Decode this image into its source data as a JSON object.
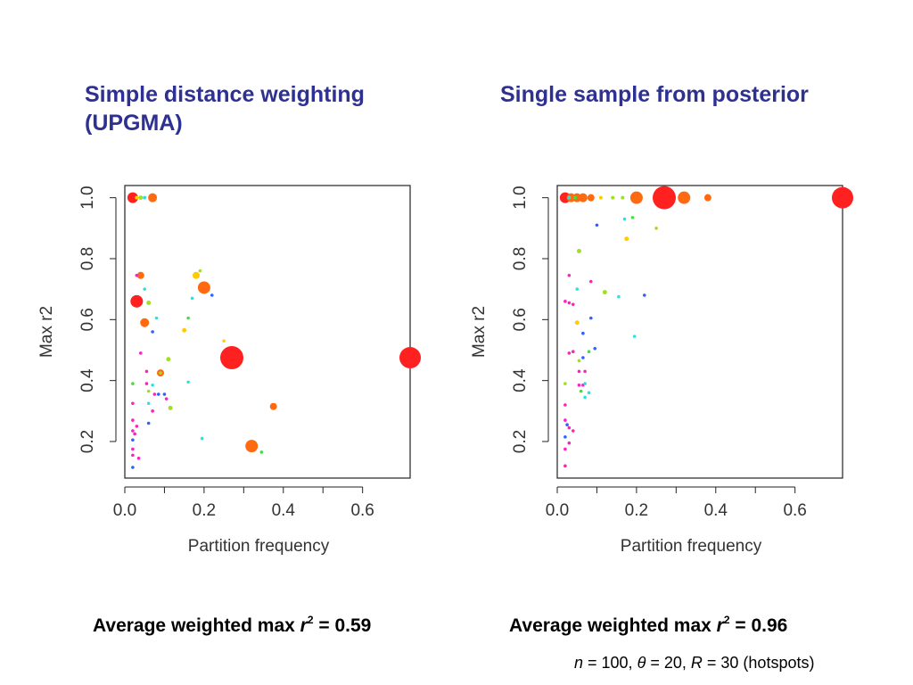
{
  "titles": {
    "left_line1": "Simple distance weighting",
    "left_line2": "(UPGMA)",
    "right": "Single sample from posterior"
  },
  "summaries": {
    "left": {
      "prefix": "Average weighted max ",
      "var": "r",
      "sup": "2",
      "suffix": " = 0.59"
    },
    "right": {
      "prefix": "Average weighted max ",
      "var": "r",
      "sup": "2",
      "suffix": " = 0.96"
    }
  },
  "footnote": {
    "n_var": "n",
    "n_text": " = 100, ",
    "theta_var": "θ",
    "theta_text": " = 20, ",
    "R_var": "R",
    "R_text": " = 30 (hotspots)"
  },
  "colors": {
    "title": "#2e3192",
    "red": "#ff2020",
    "orange": "#ff6a10",
    "dark_orange": "#f08a1a",
    "yellow": "#ffcc00",
    "lime": "#a0e020",
    "green": "#40e040",
    "cyan": "#30e0e0",
    "blue": "#3060ff",
    "magenta": "#ff20c0"
  },
  "chart_data": [
    {
      "type": "scatter",
      "title": "Simple distance weighting (UPGMA)",
      "xlabel": "Partition frequency",
      "ylabel": "Max r2",
      "xlim": [
        0.0,
        0.72
      ],
      "ylim": [
        0.08,
        1.04
      ],
      "xticks": [
        "0.0",
        "0.2",
        "0.4",
        "0.6"
      ],
      "xtick_values": [
        0.0,
        0.2,
        0.4,
        0.6
      ],
      "yticks": [
        "0.2",
        "0.4",
        "0.6",
        "0.8",
        "1.0"
      ],
      "ytick_values": [
        0.2,
        0.4,
        0.6,
        0.8,
        1.0
      ],
      "points": [
        {
          "x": 0.72,
          "y": 0.475,
          "size": 12,
          "color": "red"
        },
        {
          "x": 0.27,
          "y": 0.475,
          "size": 13,
          "color": "red"
        },
        {
          "x": 0.32,
          "y": 0.185,
          "size": 7,
          "color": "orange"
        },
        {
          "x": 0.2,
          "y": 0.705,
          "size": 7,
          "color": "orange"
        },
        {
          "x": 0.03,
          "y": 0.66,
          "size": 7,
          "color": "red"
        },
        {
          "x": 0.02,
          "y": 1.0,
          "size": 6,
          "color": "red"
        },
        {
          "x": 0.07,
          "y": 1.0,
          "size": 5,
          "color": "orange"
        },
        {
          "x": 0.05,
          "y": 0.59,
          "size": 5,
          "color": "orange"
        },
        {
          "x": 0.04,
          "y": 0.745,
          "size": 4,
          "color": "orange"
        },
        {
          "x": 0.375,
          "y": 0.315,
          "size": 4,
          "color": "orange"
        },
        {
          "x": 0.18,
          "y": 0.745,
          "size": 4,
          "color": "yellow"
        },
        {
          "x": 0.09,
          "y": 0.425,
          "size": 4,
          "color": "orange"
        },
        {
          "x": 0.04,
          "y": 1.0,
          "size": 2.5,
          "color": "lime"
        },
        {
          "x": 0.05,
          "y": 1.0,
          "size": 2,
          "color": "cyan"
        },
        {
          "x": 0.03,
          "y": 1.0,
          "size": 2,
          "color": "yellow"
        },
        {
          "x": 0.06,
          "y": 0.655,
          "size": 2.5,
          "color": "lime"
        },
        {
          "x": 0.05,
          "y": 0.7,
          "size": 1.8,
          "color": "cyan"
        },
        {
          "x": 0.03,
          "y": 0.745,
          "size": 1.8,
          "color": "magenta"
        },
        {
          "x": 0.19,
          "y": 0.76,
          "size": 1.8,
          "color": "lime"
        },
        {
          "x": 0.17,
          "y": 0.67,
          "size": 1.8,
          "color": "cyan"
        },
        {
          "x": 0.22,
          "y": 0.68,
          "size": 1.8,
          "color": "blue"
        },
        {
          "x": 0.16,
          "y": 0.605,
          "size": 1.8,
          "color": "green"
        },
        {
          "x": 0.08,
          "y": 0.605,
          "size": 1.8,
          "color": "cyan"
        },
        {
          "x": 0.15,
          "y": 0.565,
          "size": 2.5,
          "color": "yellow"
        },
        {
          "x": 0.07,
          "y": 0.56,
          "size": 1.8,
          "color": "blue"
        },
        {
          "x": 0.25,
          "y": 0.53,
          "size": 1.8,
          "color": "yellow"
        },
        {
          "x": 0.04,
          "y": 0.49,
          "size": 1.8,
          "color": "magenta"
        },
        {
          "x": 0.11,
          "y": 0.47,
          "size": 2.5,
          "color": "lime"
        },
        {
          "x": 0.055,
          "y": 0.43,
          "size": 1.8,
          "color": "magenta"
        },
        {
          "x": 0.09,
          "y": 0.425,
          "size": 1.8,
          "color": "lime"
        },
        {
          "x": 0.02,
          "y": 0.39,
          "size": 1.8,
          "color": "green"
        },
        {
          "x": 0.16,
          "y": 0.395,
          "size": 1.8,
          "color": "cyan"
        },
        {
          "x": 0.055,
          "y": 0.39,
          "size": 1.8,
          "color": "magenta"
        },
        {
          "x": 0.07,
          "y": 0.385,
          "size": 1.8,
          "color": "cyan"
        },
        {
          "x": 0.06,
          "y": 0.365,
          "size": 1.8,
          "color": "lime"
        },
        {
          "x": 0.075,
          "y": 0.355,
          "size": 1.8,
          "color": "magenta"
        },
        {
          "x": 0.085,
          "y": 0.355,
          "size": 1.8,
          "color": "blue"
        },
        {
          "x": 0.1,
          "y": 0.355,
          "size": 1.8,
          "color": "blue"
        },
        {
          "x": 0.105,
          "y": 0.34,
          "size": 1.8,
          "color": "magenta"
        },
        {
          "x": 0.06,
          "y": 0.325,
          "size": 1.8,
          "color": "cyan"
        },
        {
          "x": 0.02,
          "y": 0.325,
          "size": 1.8,
          "color": "magenta"
        },
        {
          "x": 0.115,
          "y": 0.31,
          "size": 2.5,
          "color": "lime"
        },
        {
          "x": 0.07,
          "y": 0.3,
          "size": 1.8,
          "color": "magenta"
        },
        {
          "x": 0.02,
          "y": 0.27,
          "size": 1.8,
          "color": "magenta"
        },
        {
          "x": 0.06,
          "y": 0.26,
          "size": 1.8,
          "color": "blue"
        },
        {
          "x": 0.03,
          "y": 0.25,
          "size": 1.8,
          "color": "magenta"
        },
        {
          "x": 0.02,
          "y": 0.235,
          "size": 1.8,
          "color": "magenta"
        },
        {
          "x": 0.025,
          "y": 0.225,
          "size": 1.8,
          "color": "magenta"
        },
        {
          "x": 0.02,
          "y": 0.205,
          "size": 1.8,
          "color": "blue"
        },
        {
          "x": 0.195,
          "y": 0.21,
          "size": 1.8,
          "color": "cyan"
        },
        {
          "x": 0.02,
          "y": 0.175,
          "size": 1.8,
          "color": "magenta"
        },
        {
          "x": 0.345,
          "y": 0.165,
          "size": 1.8,
          "color": "green"
        },
        {
          "x": 0.02,
          "y": 0.155,
          "size": 1.8,
          "color": "magenta"
        },
        {
          "x": 0.035,
          "y": 0.145,
          "size": 1.8,
          "color": "magenta"
        },
        {
          "x": 0.02,
          "y": 0.115,
          "size": 1.8,
          "color": "blue"
        }
      ]
    },
    {
      "type": "scatter",
      "title": "Single sample from posterior",
      "xlabel": "Partition frequency",
      "ylabel": "Max r2",
      "xlim": [
        0.0,
        0.72
      ],
      "ylim": [
        0.08,
        1.04
      ],
      "xticks": [
        "0.0",
        "0.2",
        "0.4",
        "0.6"
      ],
      "xtick_values": [
        0.0,
        0.2,
        0.4,
        0.6
      ],
      "yticks": [
        "0.2",
        "0.4",
        "0.6",
        "0.8",
        "1.0"
      ],
      "ytick_values": [
        0.2,
        0.4,
        0.6,
        0.8,
        1.0
      ],
      "points": [
        {
          "x": 0.72,
          "y": 1.0,
          "size": 12,
          "color": "red"
        },
        {
          "x": 0.27,
          "y": 1.0,
          "size": 13,
          "color": "red"
        },
        {
          "x": 0.32,
          "y": 1.0,
          "size": 7,
          "color": "orange"
        },
        {
          "x": 0.2,
          "y": 1.0,
          "size": 7,
          "color": "orange"
        },
        {
          "x": 0.02,
          "y": 1.0,
          "size": 6,
          "color": "red"
        },
        {
          "x": 0.035,
          "y": 1.0,
          "size": 5,
          "color": "orange"
        },
        {
          "x": 0.05,
          "y": 1.0,
          "size": 5,
          "color": "orange"
        },
        {
          "x": 0.065,
          "y": 1.0,
          "size": 5,
          "color": "orange"
        },
        {
          "x": 0.085,
          "y": 1.0,
          "size": 4,
          "color": "orange"
        },
        {
          "x": 0.38,
          "y": 1.0,
          "size": 4,
          "color": "orange"
        },
        {
          "x": 0.11,
          "y": 1.0,
          "size": 2,
          "color": "yellow"
        },
        {
          "x": 0.14,
          "y": 1.0,
          "size": 2,
          "color": "lime"
        },
        {
          "x": 0.165,
          "y": 1.0,
          "size": 2,
          "color": "lime"
        },
        {
          "x": 0.03,
          "y": 1.0,
          "size": 2,
          "color": "cyan"
        },
        {
          "x": 0.045,
          "y": 1.0,
          "size": 2,
          "color": "green"
        },
        {
          "x": 0.1,
          "y": 0.91,
          "size": 1.8,
          "color": "blue"
        },
        {
          "x": 0.17,
          "y": 0.93,
          "size": 1.8,
          "color": "cyan"
        },
        {
          "x": 0.19,
          "y": 0.935,
          "size": 1.8,
          "color": "green"
        },
        {
          "x": 0.25,
          "y": 0.9,
          "size": 1.8,
          "color": "lime"
        },
        {
          "x": 0.175,
          "y": 0.865,
          "size": 2.5,
          "color": "yellow"
        },
        {
          "x": 0.055,
          "y": 0.825,
          "size": 2.5,
          "color": "lime"
        },
        {
          "x": 0.03,
          "y": 0.745,
          "size": 1.8,
          "color": "magenta"
        },
        {
          "x": 0.085,
          "y": 0.725,
          "size": 1.8,
          "color": "magenta"
        },
        {
          "x": 0.05,
          "y": 0.7,
          "size": 1.8,
          "color": "cyan"
        },
        {
          "x": 0.12,
          "y": 0.69,
          "size": 2.5,
          "color": "lime"
        },
        {
          "x": 0.22,
          "y": 0.68,
          "size": 1.8,
          "color": "blue"
        },
        {
          "x": 0.155,
          "y": 0.675,
          "size": 1.8,
          "color": "cyan"
        },
        {
          "x": 0.02,
          "y": 0.66,
          "size": 1.8,
          "color": "magenta"
        },
        {
          "x": 0.03,
          "y": 0.655,
          "size": 1.8,
          "color": "magenta"
        },
        {
          "x": 0.04,
          "y": 0.65,
          "size": 1.8,
          "color": "magenta"
        },
        {
          "x": 0.085,
          "y": 0.605,
          "size": 1.8,
          "color": "blue"
        },
        {
          "x": 0.05,
          "y": 0.59,
          "size": 2.5,
          "color": "yellow"
        },
        {
          "x": 0.065,
          "y": 0.555,
          "size": 1.8,
          "color": "blue"
        },
        {
          "x": 0.195,
          "y": 0.545,
          "size": 1.8,
          "color": "cyan"
        },
        {
          "x": 0.095,
          "y": 0.505,
          "size": 1.8,
          "color": "blue"
        },
        {
          "x": 0.08,
          "y": 0.495,
          "size": 1.8,
          "color": "green"
        },
        {
          "x": 0.03,
          "y": 0.49,
          "size": 1.8,
          "color": "magenta"
        },
        {
          "x": 0.04,
          "y": 0.495,
          "size": 1.8,
          "color": "magenta"
        },
        {
          "x": 0.065,
          "y": 0.475,
          "size": 1.8,
          "color": "blue"
        },
        {
          "x": 0.055,
          "y": 0.465,
          "size": 1.8,
          "color": "lime"
        },
        {
          "x": 0.055,
          "y": 0.43,
          "size": 1.8,
          "color": "magenta"
        },
        {
          "x": 0.07,
          "y": 0.43,
          "size": 1.8,
          "color": "magenta"
        },
        {
          "x": 0.02,
          "y": 0.39,
          "size": 1.8,
          "color": "lime"
        },
        {
          "x": 0.055,
          "y": 0.385,
          "size": 1.8,
          "color": "magenta"
        },
        {
          "x": 0.065,
          "y": 0.385,
          "size": 1.8,
          "color": "magenta"
        },
        {
          "x": 0.07,
          "y": 0.39,
          "size": 1.8,
          "color": "cyan"
        },
        {
          "x": 0.06,
          "y": 0.365,
          "size": 1.8,
          "color": "green"
        },
        {
          "x": 0.08,
          "y": 0.36,
          "size": 1.8,
          "color": "cyan"
        },
        {
          "x": 0.07,
          "y": 0.345,
          "size": 1.8,
          "color": "cyan"
        },
        {
          "x": 0.02,
          "y": 0.32,
          "size": 1.8,
          "color": "magenta"
        },
        {
          "x": 0.02,
          "y": 0.27,
          "size": 1.8,
          "color": "magenta"
        },
        {
          "x": 0.025,
          "y": 0.255,
          "size": 1.8,
          "color": "blue"
        },
        {
          "x": 0.03,
          "y": 0.245,
          "size": 1.8,
          "color": "magenta"
        },
        {
          "x": 0.04,
          "y": 0.235,
          "size": 1.8,
          "color": "magenta"
        },
        {
          "x": 0.02,
          "y": 0.215,
          "size": 1.8,
          "color": "blue"
        },
        {
          "x": 0.03,
          "y": 0.195,
          "size": 1.8,
          "color": "magenta"
        },
        {
          "x": 0.02,
          "y": 0.175,
          "size": 1.8,
          "color": "magenta"
        },
        {
          "x": 0.02,
          "y": 0.12,
          "size": 1.8,
          "color": "magenta"
        }
      ]
    }
  ]
}
